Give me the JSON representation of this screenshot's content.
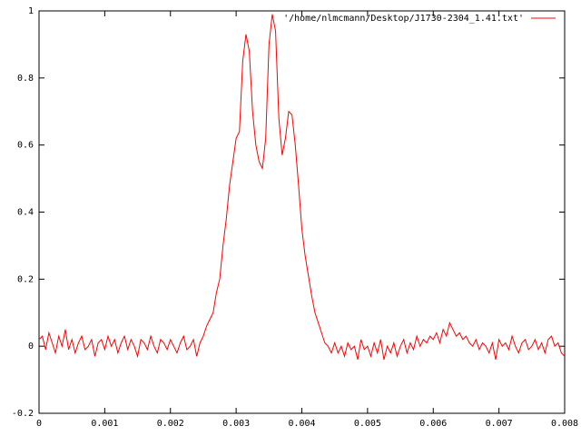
{
  "chart_data": {
    "type": "line",
    "x": [
      0,
      5e-05,
      0.0001,
      0.00015,
      0.0002,
      0.00025,
      0.0003,
      0.00035,
      0.0004,
      0.00045,
      0.0005,
      0.00055,
      0.0006,
      0.00065,
      0.0007,
      0.00075,
      0.0008,
      0.00085,
      0.0009,
      0.00095,
      0.001,
      0.00105,
      0.0011,
      0.00115,
      0.0012,
      0.00125,
      0.0013,
      0.00135,
      0.0014,
      0.00145,
      0.0015,
      0.00155,
      0.0016,
      0.00165,
      0.0017,
      0.00175,
      0.0018,
      0.00185,
      0.0019,
      0.00195,
      0.002,
      0.00205,
      0.0021,
      0.00215,
      0.0022,
      0.00225,
      0.0023,
      0.00235,
      0.0024,
      0.00245,
      0.0025,
      0.00255,
      0.0026,
      0.00265,
      0.0027,
      0.00275,
      0.0028,
      0.00285,
      0.0029,
      0.00295,
      0.003,
      0.00305,
      0.0031,
      0.00315,
      0.0032,
      0.00325,
      0.0033,
      0.00335,
      0.0034,
      0.00345,
      0.0035,
      0.00355,
      0.0036,
      0.00365,
      0.0037,
      0.00375,
      0.0038,
      0.00385,
      0.0039,
      0.00395,
      0.004,
      0.00405,
      0.0041,
      0.00415,
      0.0042,
      0.00425,
      0.0043,
      0.00435,
      0.0044,
      0.00445,
      0.0045,
      0.00455,
      0.0046,
      0.00465,
      0.0047,
      0.00475,
      0.0048,
      0.00485,
      0.0049,
      0.00495,
      0.005,
      0.00505,
      0.0051,
      0.00515,
      0.0052,
      0.00525,
      0.0053,
      0.00535,
      0.0054,
      0.00545,
      0.0055,
      0.00555,
      0.0056,
      0.00565,
      0.0057,
      0.00575,
      0.0058,
      0.00585,
      0.0059,
      0.00595,
      0.006,
      0.00605,
      0.0061,
      0.00615,
      0.0062,
      0.00625,
      0.0063,
      0.00635,
      0.0064,
      0.00645,
      0.0065,
      0.00655,
      0.0066,
      0.00665,
      0.0067,
      0.00675,
      0.0068,
      0.00685,
      0.0069,
      0.00695,
      0.007,
      0.00705,
      0.0071,
      0.00715,
      0.0072,
      0.00725,
      0.0073,
      0.00735,
      0.0074,
      0.00745,
      0.0075,
      0.00755,
      0.0076,
      0.00765,
      0.0077,
      0.00775,
      0.0078,
      0.00785,
      0.0079,
      0.00795,
      0.008
    ],
    "series": [
      {
        "name": "'/home/nlmcmann/Desktop/J1730-2304_1.41.txt'",
        "color": "#ff0000",
        "values": [
          0.02,
          0.03,
          -0.01,
          0.04,
          0.01,
          -0.02,
          0.03,
          0.0,
          0.05,
          -0.01,
          0.02,
          -0.02,
          0.01,
          0.03,
          -0.01,
          0.0,
          0.02,
          -0.03,
          0.01,
          0.02,
          -0.01,
          0.03,
          0.0,
          0.02,
          -0.02,
          0.01,
          0.03,
          -0.01,
          0.02,
          0.0,
          -0.03,
          0.02,
          0.01,
          -0.01,
          0.03,
          0.0,
          -0.02,
          0.02,
          0.01,
          -0.01,
          0.02,
          0.0,
          -0.02,
          0.01,
          0.03,
          -0.01,
          0.0,
          0.02,
          -0.03,
          0.01,
          0.03,
          0.06,
          0.08,
          0.1,
          0.16,
          0.2,
          0.3,
          0.38,
          0.48,
          0.55,
          0.62,
          0.64,
          0.85,
          0.93,
          0.88,
          0.7,
          0.6,
          0.55,
          0.53,
          0.62,
          0.9,
          0.99,
          0.94,
          0.68,
          0.57,
          0.62,
          0.7,
          0.69,
          0.6,
          0.48,
          0.35,
          0.27,
          0.21,
          0.15,
          0.1,
          0.07,
          0.04,
          0.01,
          0.0,
          -0.02,
          0.01,
          -0.02,
          0.0,
          -0.03,
          0.01,
          -0.01,
          0.0,
          -0.04,
          0.02,
          -0.01,
          0.0,
          -0.03,
          0.01,
          -0.02,
          0.02,
          -0.04,
          0.0,
          -0.02,
          0.01,
          -0.03,
          0.0,
          0.02,
          -0.02,
          0.01,
          -0.01,
          0.03,
          0.0,
          0.02,
          0.01,
          0.03,
          0.02,
          0.04,
          0.01,
          0.05,
          0.03,
          0.07,
          0.05,
          0.03,
          0.04,
          0.02,
          0.03,
          0.01,
          0.0,
          0.02,
          -0.01,
          0.01,
          0.0,
          -0.02,
          0.01,
          -0.04,
          0.02,
          0.0,
          0.01,
          -0.01,
          0.03,
          0.0,
          -0.02,
          0.01,
          0.02,
          -0.01,
          0.0,
          0.02,
          -0.01,
          0.01,
          -0.02,
          0.02,
          0.03,
          0.0,
          0.01,
          -0.02,
          -0.03
        ]
      }
    ],
    "xlim": [
      0,
      0.008
    ],
    "xticks": [
      0,
      0.001,
      0.002,
      0.003,
      0.004,
      0.005,
      0.006,
      0.007,
      0.008
    ],
    "ylim": [
      -0.2,
      1
    ],
    "yticks": [
      -0.2,
      0,
      0.2,
      0.4,
      0.6,
      0.8,
      1
    ]
  }
}
